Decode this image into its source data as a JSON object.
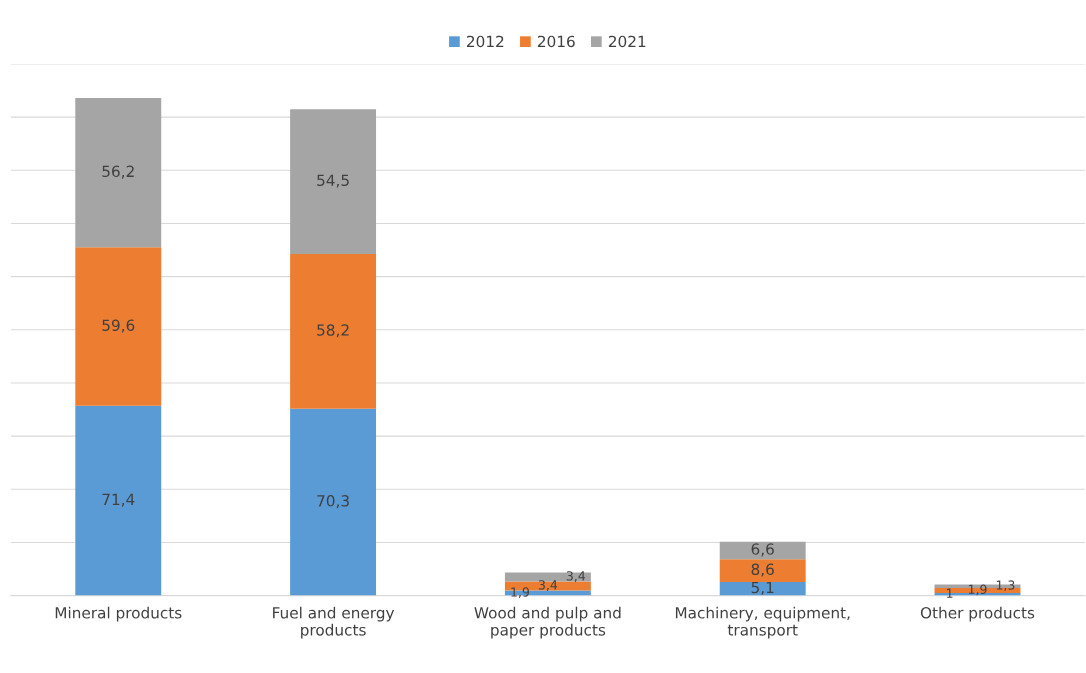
{
  "chart_data": {
    "type": "bar",
    "stacked": true,
    "categories": [
      "Mineral products",
      "Fuel and energy products",
      "Wood and pulp and paper products",
      "Machinery, equipment, transport",
      "Other products"
    ],
    "series": [
      {
        "name": "2012",
        "color": "#5b9bd5",
        "values": [
          71.4,
          70.3,
          1.9,
          5.1,
          1
        ],
        "value_labels": [
          "71,4",
          "70,3",
          "1,9",
          "5,1",
          "1"
        ]
      },
      {
        "name": "2016",
        "color": "#ed7d31",
        "values": [
          59.6,
          58.2,
          3.4,
          8.6,
          1.9
        ],
        "value_labels": [
          "59,6",
          "58,2",
          "3,4",
          "8,6",
          "1,9"
        ]
      },
      {
        "name": "2021",
        "color": "#a5a5a5",
        "values": [
          56.2,
          54.5,
          3.4,
          6.6,
          1.3
        ],
        "value_labels": [
          "56,2",
          "54,5",
          "3,4",
          "6,6",
          "1,3"
        ]
      }
    ],
    "ylim": [
      0,
      200
    ],
    "yticks": [
      {
        "value": 0,
        "label": null
      },
      {
        "value": 20,
        "label": null
      },
      {
        "value": 40,
        "label": null
      },
      {
        "value": 60,
        "label": null
      },
      {
        "value": 80,
        "label": null
      },
      {
        "value": 100,
        "label": null
      },
      {
        "value": 120,
        "label": null
      },
      {
        "value": 140,
        "label": null
      },
      {
        "value": 160,
        "label": null
      },
      {
        "value": 180,
        "label": null
      },
      {
        "value": 200,
        "label": null
      }
    ],
    "grid": "y",
    "legend": "top",
    "tick_labels": "x"
  }
}
